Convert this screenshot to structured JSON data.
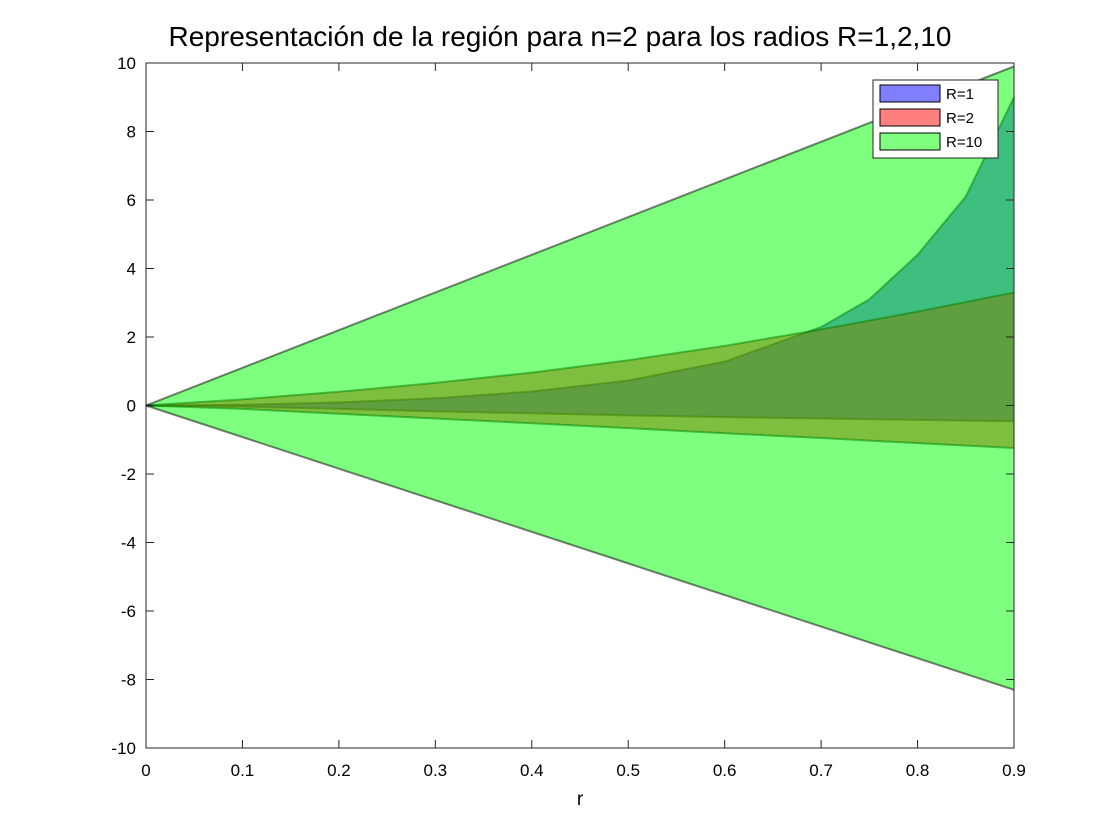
{
  "chart_data": {
    "type": "area",
    "title": "Representación de la región para n=2 para los radios R=1,2,10",
    "xlabel": "r",
    "ylabel": "",
    "xlim": [
      0,
      0.9
    ],
    "ylim": [
      -10,
      10
    ],
    "x_ticks": [
      0,
      0.1,
      0.2,
      0.3,
      0.4,
      0.5,
      0.6,
      0.7,
      0.8,
      0.9
    ],
    "x_tick_labels": [
      "0",
      "0.1",
      "0.2",
      "0.3",
      "0.4",
      "0.5",
      "0.6",
      "0.7",
      "0.8",
      "0.9"
    ],
    "y_ticks": [
      -10,
      -8,
      -6,
      -4,
      -2,
      0,
      2,
      4,
      6,
      8,
      10
    ],
    "y_tick_labels": [
      "-10",
      "-8",
      "-6",
      "-4",
      "-2",
      "0",
      "2",
      "4",
      "6",
      "8",
      "10"
    ],
    "grid": false,
    "legend_position": "top-right",
    "series": [
      {
        "name": "R=1",
        "color": "#0000ff",
        "x": [
          0,
          0.1,
          0.2,
          0.3,
          0.4,
          0.5,
          0.6,
          0.7,
          0.75,
          0.8,
          0.85,
          0.9
        ],
        "upper": [
          0,
          0.02,
          0.09,
          0.21,
          0.41,
          0.73,
          1.28,
          2.29,
          3.1,
          4.4,
          6.1,
          9.0
        ],
        "lower": [
          0,
          -0.03,
          -0.1,
          -0.17,
          -0.23,
          -0.29,
          -0.34,
          -0.38,
          -0.4,
          -0.42,
          -0.44,
          -0.46
        ]
      },
      {
        "name": "R=2",
        "color": "#ff0000",
        "x": [
          0,
          0.1,
          0.2,
          0.3,
          0.4,
          0.5,
          0.6,
          0.7,
          0.8,
          0.9
        ],
        "upper": [
          0,
          0.18,
          0.4,
          0.66,
          0.96,
          1.32,
          1.74,
          2.22,
          2.74,
          3.3
        ],
        "lower": [
          0,
          -0.1,
          -0.24,
          -0.38,
          -0.52,
          -0.66,
          -0.81,
          -0.95,
          -1.1,
          -1.24
        ]
      },
      {
        "name": "R=10",
        "color": "#00ff00",
        "x": [
          0,
          0.9
        ],
        "upper": [
          0,
          9.9
        ],
        "lower": [
          0,
          -8.3
        ]
      }
    ]
  }
}
